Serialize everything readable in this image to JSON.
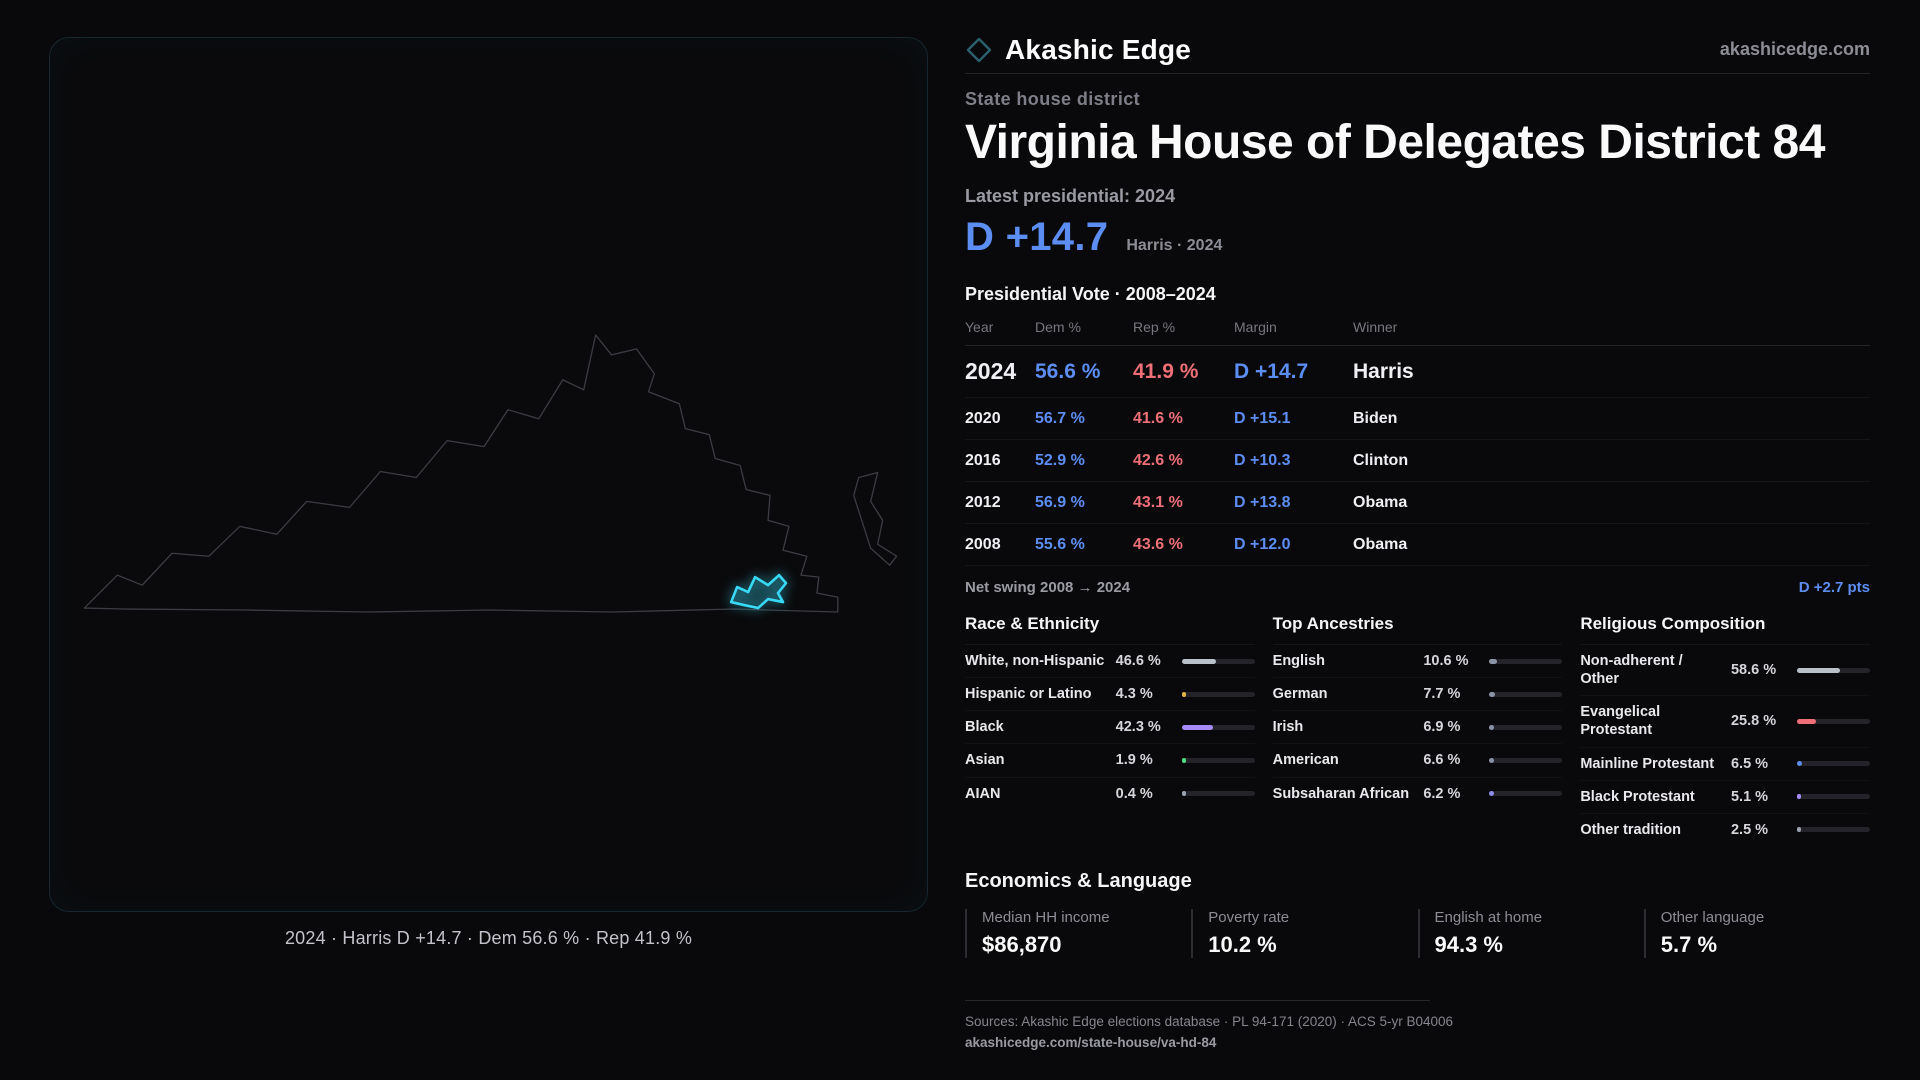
{
  "brand": {
    "name": "Akashic Edge",
    "domain": "akashicedge.com"
  },
  "map": {
    "caption": "2024 · Harris D +14.7 · Dem 56.6 % · Rep 41.9 %"
  },
  "header": {
    "kicker": "State house district",
    "title": "Virginia House of Delegates District 84",
    "latest_label": "Latest presidential: 2024",
    "margin_big": "D +14.7",
    "margin_sub": "Harris · 2024"
  },
  "vote_table": {
    "title": "Presidential Vote · 2008–2024",
    "columns": {
      "year": "Year",
      "dem": "Dem %",
      "rep": "Rep %",
      "margin": "Margin",
      "winner": "Winner"
    },
    "rows": [
      {
        "year": "2024",
        "dem": "56.6 %",
        "rep": "41.9 %",
        "margin": "D +14.7",
        "winner": "Harris"
      },
      {
        "year": "2020",
        "dem": "56.7 %",
        "rep": "41.6 %",
        "margin": "D +15.1",
        "winner": "Biden"
      },
      {
        "year": "2016",
        "dem": "52.9 %",
        "rep": "42.6 %",
        "margin": "D +10.3",
        "winner": "Clinton"
      },
      {
        "year": "2012",
        "dem": "56.9 %",
        "rep": "43.1 %",
        "margin": "D +13.8",
        "winner": "Obama"
      },
      {
        "year": "2008",
        "dem": "55.6 %",
        "rep": "43.6 %",
        "margin": "D +12.0",
        "winner": "Obama"
      }
    ],
    "net_swing_label": "Net swing 2008 → 2024",
    "net_swing_value": "D +2.7 pts"
  },
  "demographics": {
    "race": {
      "title": "Race & Ethnicity",
      "rows": [
        {
          "label": "White, non-Hispanic",
          "value": "46.6 %",
          "pct": 46.6,
          "color": "#b9c0c8"
        },
        {
          "label": "Hispanic or Latino",
          "value": "4.3 %",
          "pct": 4.3,
          "color": "#e3b341"
        },
        {
          "label": "Black",
          "value": "42.3 %",
          "pct": 42.3,
          "color": "#a78bfa"
        },
        {
          "label": "Asian",
          "value": "1.9 %",
          "pct": 1.9,
          "color": "#4ade80"
        },
        {
          "label": "AIAN",
          "value": "0.4 %",
          "pct": 0.4,
          "color": "#9aa3ad"
        }
      ]
    },
    "ancestries": {
      "title": "Top Ancestries",
      "rows": [
        {
          "label": "English",
          "value": "10.6 %",
          "pct": 10.6,
          "color": "#8b93a7"
        },
        {
          "label": "German",
          "value": "7.7 %",
          "pct": 7.7,
          "color": "#8b93a7"
        },
        {
          "label": "Irish",
          "value": "6.9 %",
          "pct": 6.9,
          "color": "#8b93a7"
        },
        {
          "label": "American",
          "value": "6.6 %",
          "pct": 6.6,
          "color": "#8b93a7"
        },
        {
          "label": "Subsaharan African",
          "value": "6.2 %",
          "pct": 6.2,
          "color": "#8d8df0"
        }
      ]
    },
    "religion": {
      "title": "Religious Composition",
      "rows": [
        {
          "label": "Non-adherent / Other",
          "value": "58.6 %",
          "pct": 58.6,
          "color": "#b9c0c8"
        },
        {
          "label": "Evangelical Protestant",
          "value": "25.8 %",
          "pct": 25.8,
          "color": "#ee6f78"
        },
        {
          "label": "Mainline Protestant",
          "value": "6.5 %",
          "pct": 6.5,
          "color": "#5c8df2"
        },
        {
          "label": "Black Protestant",
          "value": "5.1 %",
          "pct": 5.1,
          "color": "#a78bfa"
        },
        {
          "label": "Other tradition",
          "value": "2.5 %",
          "pct": 2.5,
          "color": "#9aa3ad"
        }
      ]
    }
  },
  "economics": {
    "title": "Economics & Language",
    "stats": [
      {
        "label": "Median HH income",
        "value": "$86,870"
      },
      {
        "label": "Poverty rate",
        "value": "10.2 %"
      },
      {
        "label": "English at home",
        "value": "94.3 %"
      },
      {
        "label": "Other language",
        "value": "5.7 %"
      }
    ]
  },
  "footer": {
    "sources": "Sources: Akashic Edge elections database · PL 94-171 (2020) · ACS 5-yr B04006",
    "permalink": "akashicedge.com/state-house/va-hd-84"
  },
  "colors": {
    "dem": "#5c8df2",
    "rep": "#ee6f78",
    "accent": "#38d9f5"
  }
}
